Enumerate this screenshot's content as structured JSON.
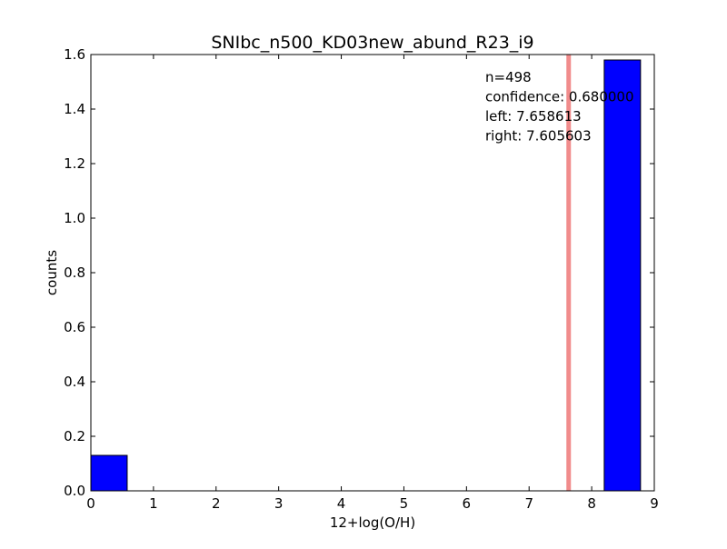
{
  "chart_data": {
    "type": "bar",
    "title": "SNIbc_n500_KD03new_abund_R23_i9",
    "xlabel": "12+log(O/H)",
    "ylabel": "counts",
    "xlim": [
      0,
      9
    ],
    "ylim": [
      0,
      1.6
    ],
    "xticks": [
      "0",
      "1",
      "2",
      "3",
      "4",
      "5",
      "6",
      "7",
      "8",
      "9"
    ],
    "yticks": [
      "0.0",
      "0.2",
      "0.4",
      "0.6",
      "0.8",
      "1.0",
      "1.2",
      "1.4",
      "1.6"
    ],
    "bins": [
      {
        "left": 0.0,
        "right": 0.58,
        "value": 0.13
      },
      {
        "left": 8.2,
        "right": 8.78,
        "value": 1.58
      }
    ],
    "vline": {
      "x": 7.632,
      "color": "#f08080"
    },
    "bar_color": "#0000ff",
    "grid": false,
    "annotations": [
      "n=498",
      "confidence: 0.680000",
      "left: 7.658613",
      "right: 7.605603"
    ]
  }
}
